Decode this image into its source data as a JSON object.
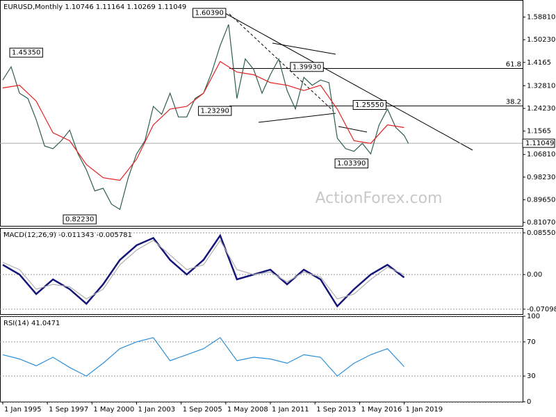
{
  "chart_data": [
    {
      "type": "line",
      "title": "EURUSD,Monthly  1.10746 1.11164 1.10269 1.11049",
      "watermark": "ActionForex.com",
      "x": [
        "1995-01",
        "1995-07",
        "1996-01",
        "1996-07",
        "1997-01",
        "1997-07",
        "1998-01",
        "1998-07",
        "1999-01",
        "1999-07",
        "2000-01",
        "2000-07",
        "2001-01",
        "2001-07",
        "2002-01",
        "2002-07",
        "2003-01",
        "2003-07",
        "2004-01",
        "2004-07",
        "2005-01",
        "2005-07",
        "2006-01",
        "2006-07",
        "2007-01",
        "2007-07",
        "2008-01",
        "2008-07",
        "2009-01",
        "2009-07",
        "2010-01",
        "2010-07",
        "2011-01",
        "2011-07",
        "2012-01",
        "2012-07",
        "2013-01",
        "2013-07",
        "2014-01",
        "2014-07",
        "2015-01",
        "2015-07",
        "2016-01",
        "2016-07",
        "2017-01",
        "2017-07",
        "2018-01",
        "2018-07",
        "2019-01",
        "2019-04"
      ],
      "series": [
        {
          "color": "#2e5e4e",
          "values": [
            1.35,
            1.4,
            1.3,
            1.28,
            1.2,
            1.1,
            1.09,
            1.12,
            1.16,
            1.07,
            1.01,
            0.93,
            0.94,
            0.88,
            0.86,
            0.98,
            1.07,
            1.12,
            1.25,
            1.22,
            1.3,
            1.21,
            1.21,
            1.28,
            1.3,
            1.38,
            1.48,
            1.56,
            1.28,
            1.43,
            1.39,
            1.3,
            1.37,
            1.43,
            1.31,
            1.24,
            1.36,
            1.33,
            1.35,
            1.34,
            1.13,
            1.09,
            1.08,
            1.11,
            1.07,
            1.18,
            1.24,
            1.17,
            1.14,
            1.11
          ]
        },
        {
          "color": "#e02020",
          "x": [
            "1995-01",
            "1996-01",
            "1997-01",
            "1998-01",
            "1999-01",
            "2000-01",
            "2001-01",
            "2002-01",
            "2003-01",
            "2004-01",
            "2005-01",
            "2006-01",
            "2007-01",
            "2008-01",
            "2009-01",
            "2010-01",
            "2011-01",
            "2012-01",
            "2013-01",
            "2014-01",
            "2015-01",
            "2016-01",
            "2017-01",
            "2018-01",
            "2019-01"
          ],
          "values": [
            1.32,
            1.33,
            1.27,
            1.15,
            1.12,
            1.03,
            0.98,
            0.97,
            1.05,
            1.18,
            1.24,
            1.25,
            1.3,
            1.42,
            1.38,
            1.37,
            1.34,
            1.33,
            1.31,
            1.33,
            1.24,
            1.12,
            1.11,
            1.18,
            1.17
          ]
        }
      ],
      "annotations": [
        {
          "x": "1995-04",
          "value": 1.4535,
          "label": "1.45350"
        },
        {
          "x": "2000-10",
          "value": 0.8223,
          "label": "0.82230"
        },
        {
          "x": "2008-07",
          "value": 1.6039,
          "label": "1.60390"
        },
        {
          "x": "2008-11",
          "value": 1.2329,
          "label": "1.23290"
        },
        {
          "x": "2014-05",
          "value": 1.3993,
          "label": "1.39930"
        },
        {
          "x": "2018-02",
          "value": 1.2555,
          "label": "1.25550"
        },
        {
          "x": "2017-01",
          "value": 1.0339,
          "label": "1.03390"
        }
      ],
      "levels": [
        {
          "ratio": 61.8,
          "value": 1.3935
        },
        {
          "ratio": 38.2,
          "value": 1.252
        }
      ],
      "last_price": {
        "value": 1.11049,
        "label": "1.11049"
      },
      "xlim": [
        "1994-11",
        "2026-02"
      ],
      "ylim": [
        0.7977,
        1.6527
      ],
      "yticks": [
        {
          "value": 1.5881,
          "label": "1.58810"
        },
        {
          "value": 1.5023,
          "label": "1.50230"
        },
        1.4165,
        {
          "value": 1.3281,
          "label": "1.32810"
        },
        {
          "value": 1.2423,
          "label": "1.24230"
        },
        1.1565,
        {
          "value": 1.0681,
          "label": "1.06810"
        },
        {
          "value": 0.9823,
          "label": "0.98230"
        },
        {
          "value": 0.8965,
          "label": "0.89650"
        },
        {
          "value": 0.8107,
          "label": "0.81070"
        }
      ],
      "grid": false
    },
    {
      "type": "line",
      "title": "MACD(12,26,9) -0.011343 -0.005781",
      "x": [
        "1995-01",
        "1996-01",
        "1997-01",
        "1998-01",
        "1999-01",
        "2000-01",
        "2001-01",
        "2002-01",
        "2003-01",
        "2004-01",
        "2005-01",
        "2006-01",
        "2007-01",
        "2008-01",
        "2009-01",
        "2010-01",
        "2011-01",
        "2012-01",
        "2013-01",
        "2014-01",
        "2015-01",
        "2016-01",
        "2017-01",
        "2018-01",
        "2019-01"
      ],
      "series": [
        {
          "color": "#15157a",
          "values": [
            0.02,
            0.0,
            -0.04,
            -0.01,
            -0.03,
            -0.06,
            -0.02,
            0.03,
            0.06,
            0.075,
            0.03,
            0.0,
            0.03,
            0.08,
            -0.01,
            0.0,
            0.01,
            -0.02,
            0.01,
            -0.01,
            -0.065,
            -0.03,
            0.0,
            0.02,
            -0.006
          ]
        },
        {
          "color": "#b0b0b0",
          "values": [
            0.025,
            0.01,
            -0.03,
            -0.02,
            -0.025,
            -0.05,
            -0.03,
            0.02,
            0.05,
            0.07,
            0.04,
            0.01,
            0.02,
            0.07,
            0.01,
            0.0,
            0.005,
            -0.015,
            0.005,
            -0.005,
            -0.05,
            -0.04,
            -0.01,
            0.015,
            0.0
          ]
        }
      ],
      "xlim": [
        "1994-11",
        "2026-02"
      ],
      "ylim": [
        -0.0812,
        0.0955
      ],
      "yticks": [
        0.085509,
        {
          "value": 0,
          "label": "0.00"
        },
        -0.070989
      ],
      "grid": true
    },
    {
      "type": "line",
      "title": "RSI(14) 41.0471",
      "x": [
        "1995-01",
        "1996-01",
        "1997-01",
        "1998-01",
        "1999-01",
        "2000-01",
        "2001-01",
        "2002-01",
        "2003-01",
        "2004-01",
        "2005-01",
        "2006-01",
        "2007-01",
        "2008-01",
        "2009-01",
        "2010-01",
        "2011-01",
        "2012-01",
        "2013-01",
        "2014-01",
        "2015-01",
        "2016-01",
        "2017-01",
        "2018-01",
        "2019-01"
      ],
      "series": [
        {
          "color": "#2a8fd8",
          "values": [
            55,
            50,
            42,
            52,
            40,
            30,
            45,
            62,
            70,
            75,
            48,
            55,
            62,
            75,
            48,
            52,
            50,
            45,
            55,
            52,
            30,
            45,
            55,
            62,
            41
          ]
        }
      ],
      "xlim": [
        "1994-11",
        "2026-02"
      ],
      "ylim": [
        0,
        100
      ],
      "yticks": [
        100,
        70,
        30,
        0
      ],
      "xticks": [
        {
          "value": "1995-01",
          "label": "1 Jan 1995"
        },
        {
          "value": "1997-09",
          "label": "1 Sep 1997"
        },
        {
          "value": "2000-05",
          "label": "1 May 2000"
        },
        {
          "value": "2003-01",
          "label": "1 Jan 2003"
        },
        {
          "value": "2005-09",
          "label": "1 Sep 2005"
        },
        {
          "value": "2008-05",
          "label": "1 May 2008"
        },
        {
          "value": "2011-01",
          "label": "1 Jan 2011"
        },
        {
          "value": "2013-09",
          "label": "1 Sep 2013"
        },
        {
          "value": "2016-05",
          "label": "1 May 2016"
        },
        {
          "value": "2019-01",
          "label": "1 Jan 2019"
        }
      ],
      "grid": true
    }
  ]
}
